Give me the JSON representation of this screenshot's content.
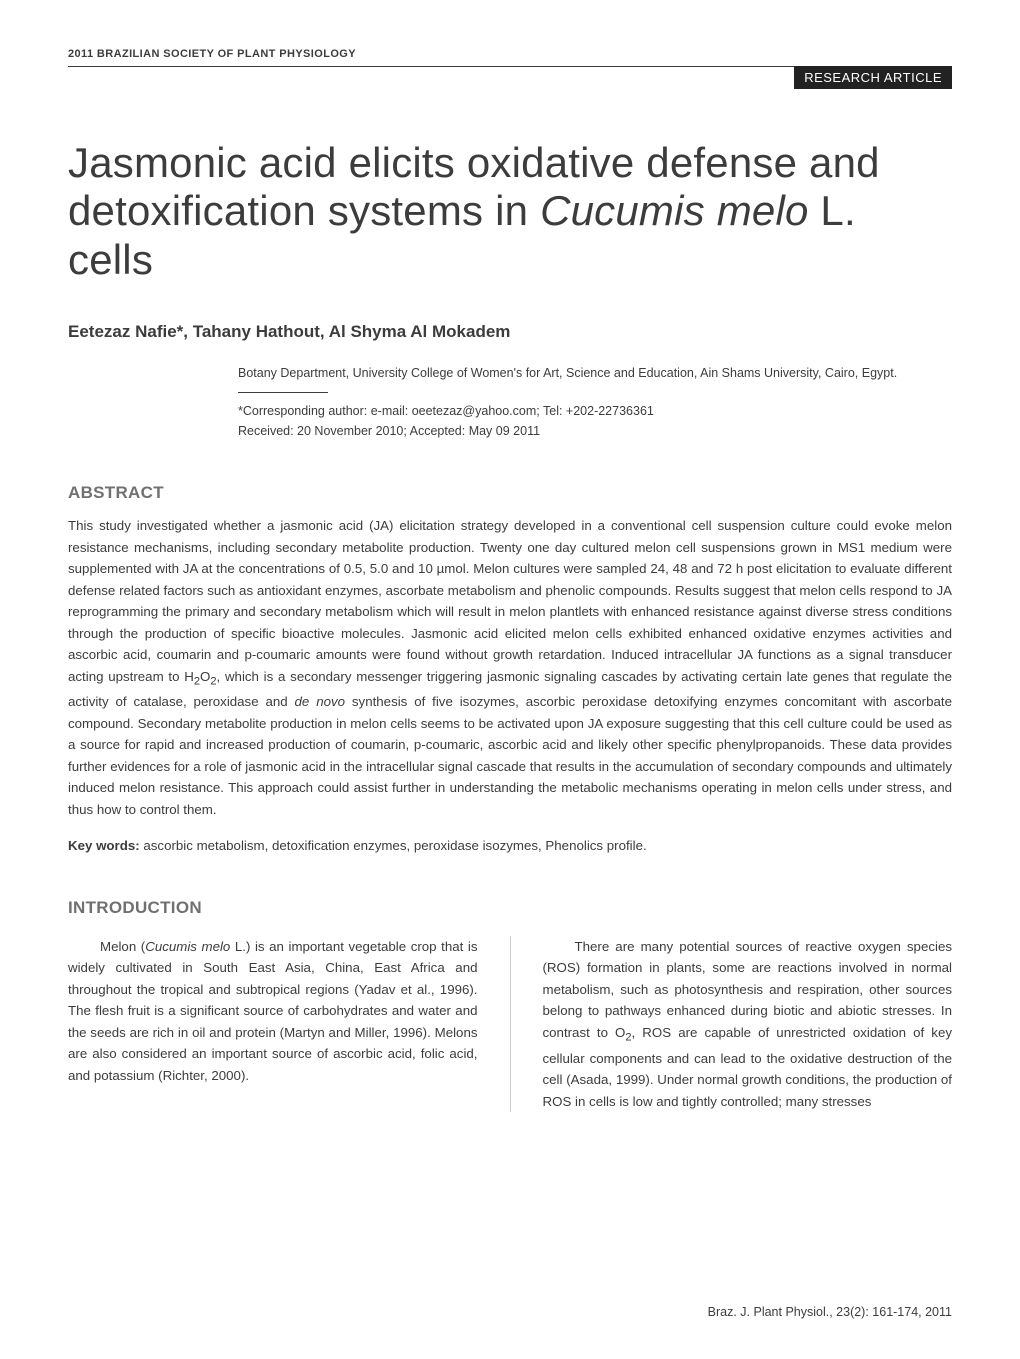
{
  "running_head": "2011 BRAZILIAN SOCIETY OF PLANT PHYSIOLOGY",
  "article_label": "RESEARCH ARTICLE",
  "title_pre": "Jasmonic acid elicits oxidative defense and detoxification systems in ",
  "title_ital": "Cucumis melo",
  "title_post": " L. cells",
  "authors": "Eetezaz Nafie*, Tahany Hathout, Al Shyma Al Mokadem",
  "affiliation": "Botany Department, University College of Women's for Art, Science and Education, Ain Shams University, Cairo, Egypt.",
  "correspondence": "*Corresponding author: e-mail: oeetezaz@yahoo.com; Tel: +202-22736361",
  "received": "Received: 20 November 2010; Accepted: May 09 2011",
  "abstract_head": "ABSTRACT",
  "abstract_body_1": "This study investigated whether a jasmonic acid (JA) elicitation strategy developed in a conventional cell suspension culture could evoke melon resistance mechanisms, including secondary metabolite production. Twenty one day cultured melon cell suspensions grown in MS1 medium were supplemented with JA at the concentrations of 0.5, 5.0 and 10 µmol. Melon cultures were sampled 24, 48 and 72 h post elicitation to evaluate different defense related factors such as antioxidant enzymes, ascorbate metabolism and phenolic compounds. Results suggest that melon cells respond to JA reprogramming the primary and secondary metabolism which will result in melon plantlets with enhanced resistance against diverse stress conditions through the production of specific bioactive molecules. Jasmonic acid elicited melon cells exhibited enhanced oxidative enzymes activities and ascorbic acid, coumarin and p-coumaric amounts were found without growth retardation. Induced intracellular JA functions as a signal transducer acting upstream to H",
  "abstract_sub1": "2",
  "abstract_mid1": "O",
  "abstract_sub2": "2",
  "abstract_body_2": ", which is a secondary messenger triggering jasmonic signaling cascades by activating certain late genes that regulate the activity of catalase, peroxidase and ",
  "abstract_ital": "de novo",
  "abstract_body_3": " synthesis of five isozymes, ascorbic peroxidase detoxifying enzymes concomitant with ascorbate compound. Secondary metabolite production in melon cells seems to be activated upon JA exposure suggesting that this cell culture could be used as a source for rapid and increased production of coumarin, p-coumaric, ascorbic acid and likely other specific phenylpropanoids. These data provides further evidences for a role of jasmonic acid in the intracellular signal cascade that results in the accumulation of secondary compounds and ultimately induced melon resistance. This approach could assist further in understanding the metabolic mechanisms operating in melon cells under stress, and thus how to control them.",
  "keywords_label": "Key words:",
  "keywords_text": " ascorbic metabolism, detoxification enzymes, peroxidase isozymes, Phenolics profile.",
  "intro_head": "INTRODUCTION",
  "intro_col1_pre": "Melon (",
  "intro_col1_ital": "Cucumis melo",
  "intro_col1_post": " L.) is an important vegetable crop that is widely cultivated in South East Asia, China, East Africa and throughout the tropical and subtropical regions (Yadav et al., 1996). The flesh fruit is a significant source of carbohydrates and water and the seeds are rich in oil and protein (Martyn and Miller, 1996). Melons are also considered an important source of ascorbic acid, folic acid, and potassium (Richter, 2000).",
  "intro_col2_a": "There are many potential sources of reactive oxygen species (ROS) formation in plants, some are reactions involved in normal metabolism, such as photosynthesis and respiration, other sources belong to pathways enhanced during biotic and abiotic stresses. In contrast to O",
  "intro_col2_sub": "2",
  "intro_col2_b": ", ROS are capable of unrestricted oxidation of key cellular components and can lead to the oxidative destruction of the cell (Asada, 1999). Under normal growth conditions, the production of ROS in cells is low and tightly controlled; many stresses",
  "footer": "Braz. J. Plant Physiol., 23(2): 161-174, 2011"
}
